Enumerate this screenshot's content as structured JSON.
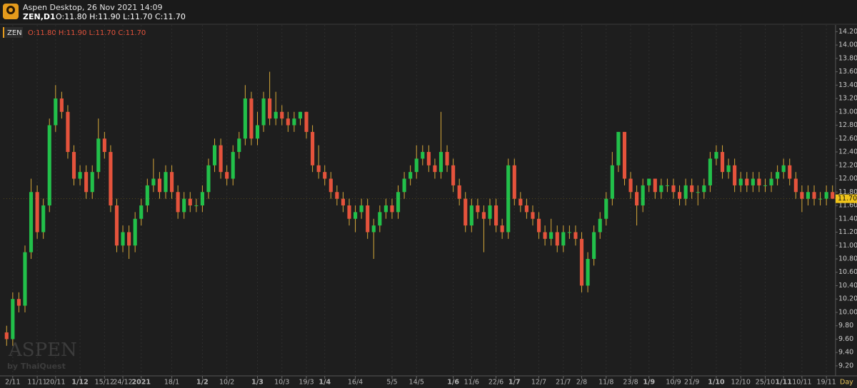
{
  "header": {
    "title": "Aspen Desktop, 26 Nov 2021 14:09",
    "symbol": "ZEN,D1",
    "ohlc": "O:11.80 H:11.90 L:11.70 C:11.70"
  },
  "watermark": {
    "brand": "ASPEN",
    "by": "by ThaiQuest"
  },
  "chart_data": {
    "type": "candlestick",
    "symbol": "ZEN",
    "ohlc_label": "O:11.80 H:11.90 L:11.70 C:11.70",
    "timeframe": "Day",
    "up_color": "#22c04a",
    "down_color": "#e5533c",
    "wick_color": "#d6a83a",
    "xlim": [
      -0.5,
      135.5
    ],
    "xticks": [
      {
        "value": 1,
        "label": "2/11"
      },
      {
        "value": 5,
        "label": "11/11"
      },
      {
        "value": 8,
        "label": "20/11"
      },
      {
        "value": 12,
        "label": "1/12"
      },
      {
        "value": 16,
        "label": "15/12"
      },
      {
        "value": 19,
        "label": "24/12"
      },
      {
        "value": 22,
        "label": "2021"
      },
      {
        "value": 27,
        "label": "18/1"
      },
      {
        "value": 32,
        "label": "1/2"
      },
      {
        "value": 36,
        "label": "10/2"
      },
      {
        "value": 41,
        "label": "1/3"
      },
      {
        "value": 45,
        "label": "10/3"
      },
      {
        "value": 49,
        "label": "19/3"
      },
      {
        "value": 52,
        "label": "1/4"
      },
      {
        "value": 57,
        "label": "16/4"
      },
      {
        "value": 63,
        "label": "5/5"
      },
      {
        "value": 67,
        "label": "14/5"
      },
      {
        "value": 73,
        "label": "1/6"
      },
      {
        "value": 76,
        "label": "11/6"
      },
      {
        "value": 80,
        "label": "22/6"
      },
      {
        "value": 83,
        "label": "1/7"
      },
      {
        "value": 87,
        "label": "12/7"
      },
      {
        "value": 91,
        "label": "21/7"
      },
      {
        "value": 94,
        "label": "2/8"
      },
      {
        "value": 98,
        "label": "11/8"
      },
      {
        "value": 102,
        "label": "23/8"
      },
      {
        "value": 105,
        "label": "1/9"
      },
      {
        "value": 109,
        "label": "10/9"
      },
      {
        "value": 112,
        "label": "21/9"
      },
      {
        "value": 116,
        "label": "1/10"
      },
      {
        "value": 120,
        "label": "12/10"
      },
      {
        "value": 124,
        "label": "25/10"
      },
      {
        "value": 127,
        "label": "1/11"
      },
      {
        "value": 130,
        "label": "10/11"
      },
      {
        "value": 134,
        "label": "19/11"
      }
    ],
    "ylim": [
      9.05,
      14.3
    ],
    "yticks": [
      {
        "value": 9.2,
        "label": "9.20"
      },
      {
        "value": 9.4,
        "label": "9.40"
      },
      {
        "value": 9.6,
        "label": "9.60"
      },
      {
        "value": 9.8,
        "label": "9.80"
      },
      {
        "value": 10,
        "label": "10.00"
      },
      {
        "value": 10.2,
        "label": "10.20"
      },
      {
        "value": 10.4,
        "label": "10.40"
      },
      {
        "value": 10.6,
        "label": "10.60"
      },
      {
        "value": 10.8,
        "label": "10.80"
      },
      {
        "value": 11,
        "label": "11.00"
      },
      {
        "value": 11.2,
        "label": "11.20"
      },
      {
        "value": 11.4,
        "label": "11.40"
      },
      {
        "value": 11.6,
        "label": "11.60"
      },
      {
        "value": 11.8,
        "label": "11.80"
      },
      {
        "value": 12,
        "label": "12.00"
      },
      {
        "value": 12.2,
        "label": "12.20"
      },
      {
        "value": 12.4,
        "label": "12.40"
      },
      {
        "value": 12.6,
        "label": "12.60"
      },
      {
        "value": 12.8,
        "label": "12.80"
      },
      {
        "value": 13,
        "label": "13.00"
      },
      {
        "value": 13.2,
        "label": "13.20"
      },
      {
        "value": 13.4,
        "label": "13.40"
      },
      {
        "value": 13.6,
        "label": "13.60"
      },
      {
        "value": 13.8,
        "label": "13.80"
      },
      {
        "value": 14,
        "label": "14.00"
      },
      {
        "value": 14.2,
        "label": "14.20"
      }
    ],
    "last_price": {
      "value": 11.7,
      "label": "11.70"
    },
    "open": [
      9.7,
      9.6,
      10.2,
      10.1,
      10.9,
      11.8,
      11.2,
      11.6,
      12.8,
      13.2,
      13.0,
      12.4,
      12.0,
      12.1,
      11.8,
      12.1,
      12.6,
      12.4,
      11.6,
      11.0,
      11.2,
      11.0,
      11.4,
      11.6,
      11.9,
      12.0,
      11.8,
      12.1,
      11.8,
      11.5,
      11.7,
      11.6,
      11.6,
      11.8,
      12.2,
      12.5,
      12.1,
      12.0,
      12.4,
      12.6,
      13.2,
      12.6,
      12.8,
      13.2,
      12.9,
      13.0,
      12.9,
      12.8,
      12.9,
      13.0,
      12.7,
      12.2,
      12.1,
      12.0,
      11.8,
      11.7,
      11.6,
      11.4,
      11.5,
      11.6,
      11.2,
      11.3,
      11.5,
      11.6,
      11.5,
      11.8,
      12.0,
      12.1,
      12.3,
      12.4,
      12.2,
      12.1,
      12.4,
      12.2,
      11.9,
      11.7,
      11.3,
      11.6,
      11.5,
      11.4,
      11.6,
      11.3,
      11.2,
      12.2,
      11.7,
      11.6,
      11.5,
      11.4,
      11.2,
      11.1,
      11.2,
      11.0,
      11.2,
      11.2,
      11.1,
      10.4,
      10.8,
      11.2,
      11.4,
      11.7,
      12.2,
      12.7,
      12.0,
      11.8,
      11.6,
      11.9,
      12.0,
      11.8,
      11.9,
      11.9,
      11.8,
      11.7,
      11.9,
      11.8,
      11.8,
      11.9,
      12.3,
      12.4,
      12.1,
      12.2,
      11.9,
      12.0,
      11.9,
      12.0,
      11.9,
      11.9,
      12.0,
      12.1,
      12.2,
      12.0,
      11.8,
      11.7,
      11.8,
      11.7,
      11.7,
      11.8
    ],
    "high": [
      9.8,
      10.3,
      10.3,
      11.0,
      12.0,
      11.9,
      11.7,
      12.9,
      13.4,
      13.3,
      13.1,
      12.5,
      12.2,
      12.2,
      12.2,
      12.9,
      12.7,
      12.5,
      11.7,
      11.3,
      11.3,
      11.5,
      11.7,
      12.0,
      12.3,
      12.1,
      12.2,
      12.2,
      11.9,
      11.8,
      11.8,
      11.7,
      11.9,
      12.3,
      12.6,
      12.6,
      12.2,
      12.5,
      12.7,
      13.4,
      13.3,
      13.0,
      13.3,
      13.6,
      13.3,
      13.1,
      13.0,
      13.0,
      13.0,
      13.0,
      12.8,
      12.5,
      12.2,
      12.1,
      11.9,
      11.8,
      11.7,
      11.6,
      11.7,
      11.7,
      11.4,
      11.6,
      11.7,
      11.7,
      11.9,
      12.1,
      12.2,
      12.5,
      12.5,
      12.5,
      12.3,
      13.0,
      12.5,
      12.3,
      12.0,
      11.8,
      11.7,
      11.7,
      11.6,
      11.7,
      11.7,
      11.4,
      12.3,
      12.3,
      11.8,
      11.7,
      11.6,
      11.5,
      11.3,
      11.4,
      11.3,
      11.3,
      11.3,
      11.3,
      11.2,
      10.9,
      11.3,
      11.5,
      11.8,
      12.4,
      12.7,
      12.7,
      12.1,
      11.9,
      12.0,
      12.0,
      12.0,
      12.0,
      12.0,
      12.0,
      11.9,
      12.0,
      12.0,
      11.9,
      12.0,
      12.4,
      12.5,
      12.5,
      12.3,
      12.3,
      12.1,
      12.1,
      12.1,
      12.1,
      12.0,
      12.1,
      12.2,
      12.3,
      12.3,
      12.1,
      11.9,
      11.9,
      11.9,
      11.8,
      11.9,
      11.9
    ],
    "low": [
      9.5,
      9.5,
      10.0,
      10.0,
      10.8,
      11.1,
      11.1,
      11.5,
      12.7,
      12.9,
      12.3,
      11.9,
      11.9,
      11.7,
      11.7,
      12.0,
      12.3,
      11.5,
      10.9,
      10.9,
      10.8,
      10.9,
      11.3,
      11.5,
      11.8,
      11.7,
      11.7,
      11.7,
      11.4,
      11.4,
      11.5,
      11.5,
      11.5,
      11.7,
      12.1,
      12.0,
      11.9,
      11.9,
      12.3,
      12.5,
      12.5,
      12.5,
      12.7,
      12.8,
      12.8,
      12.8,
      12.7,
      12.7,
      12.8,
      12.6,
      12.1,
      12.0,
      11.9,
      11.7,
      11.6,
      11.5,
      11.3,
      11.2,
      11.4,
      11.1,
      10.8,
      11.2,
      11.4,
      11.4,
      11.4,
      11.7,
      11.9,
      12.0,
      12.2,
      12.1,
      12.0,
      12.0,
      12.1,
      11.8,
      11.6,
      11.2,
      11.2,
      11.4,
      10.9,
      11.3,
      11.2,
      11.1,
      11.1,
      11.6,
      11.5,
      11.4,
      11.3,
      11.1,
      11.0,
      11.0,
      10.9,
      10.9,
      11.1,
      11.0,
      10.3,
      10.3,
      10.7,
      11.1,
      11.3,
      11.6,
      12.1,
      11.9,
      11.7,
      11.3,
      11.5,
      11.8,
      11.7,
      11.7,
      11.8,
      11.7,
      11.6,
      11.6,
      11.7,
      11.6,
      11.7,
      11.8,
      12.2,
      12.0,
      12.0,
      11.8,
      11.8,
      11.8,
      11.8,
      11.8,
      11.8,
      11.8,
      11.9,
      12.0,
      11.9,
      11.7,
      11.5,
      11.6,
      11.6,
      11.6,
      11.6,
      11.7
    ],
    "close": [
      9.6,
      10.2,
      10.1,
      10.9,
      11.8,
      11.2,
      11.6,
      12.8,
      13.2,
      13.0,
      12.4,
      12.0,
      12.1,
      11.8,
      12.1,
      12.6,
      12.4,
      11.6,
      11.0,
      11.2,
      11.0,
      11.4,
      11.6,
      11.9,
      12.0,
      11.8,
      12.1,
      11.8,
      11.5,
      11.7,
      11.6,
      11.6,
      11.8,
      12.2,
      12.5,
      12.1,
      12.0,
      12.4,
      12.6,
      13.2,
      12.6,
      12.8,
      13.2,
      12.9,
      13.0,
      12.9,
      12.8,
      12.9,
      13.0,
      12.7,
      12.2,
      12.1,
      12.0,
      11.8,
      11.7,
      11.6,
      11.4,
      11.5,
      11.6,
      11.2,
      11.3,
      11.5,
      11.6,
      11.5,
      11.8,
      12.0,
      12.1,
      12.3,
      12.4,
      12.2,
      12.1,
      12.4,
      12.2,
      11.9,
      11.7,
      11.3,
      11.6,
      11.5,
      11.4,
      11.6,
      11.3,
      11.2,
      12.2,
      11.7,
      11.6,
      11.5,
      11.4,
      11.2,
      11.1,
      11.2,
      11.0,
      11.2,
      11.2,
      11.1,
      10.4,
      10.8,
      11.2,
      11.4,
      11.7,
      12.2,
      12.7,
      12.0,
      11.8,
      11.6,
      11.9,
      12.0,
      11.8,
      11.9,
      11.9,
      11.8,
      11.7,
      11.9,
      11.8,
      11.8,
      11.9,
      12.3,
      12.4,
      12.1,
      12.2,
      11.9,
      12.0,
      11.9,
      12.0,
      11.9,
      11.9,
      12.0,
      12.1,
      12.2,
      12.0,
      11.8,
      11.7,
      11.8,
      11.7,
      11.7,
      11.8,
      11.7
    ]
  }
}
